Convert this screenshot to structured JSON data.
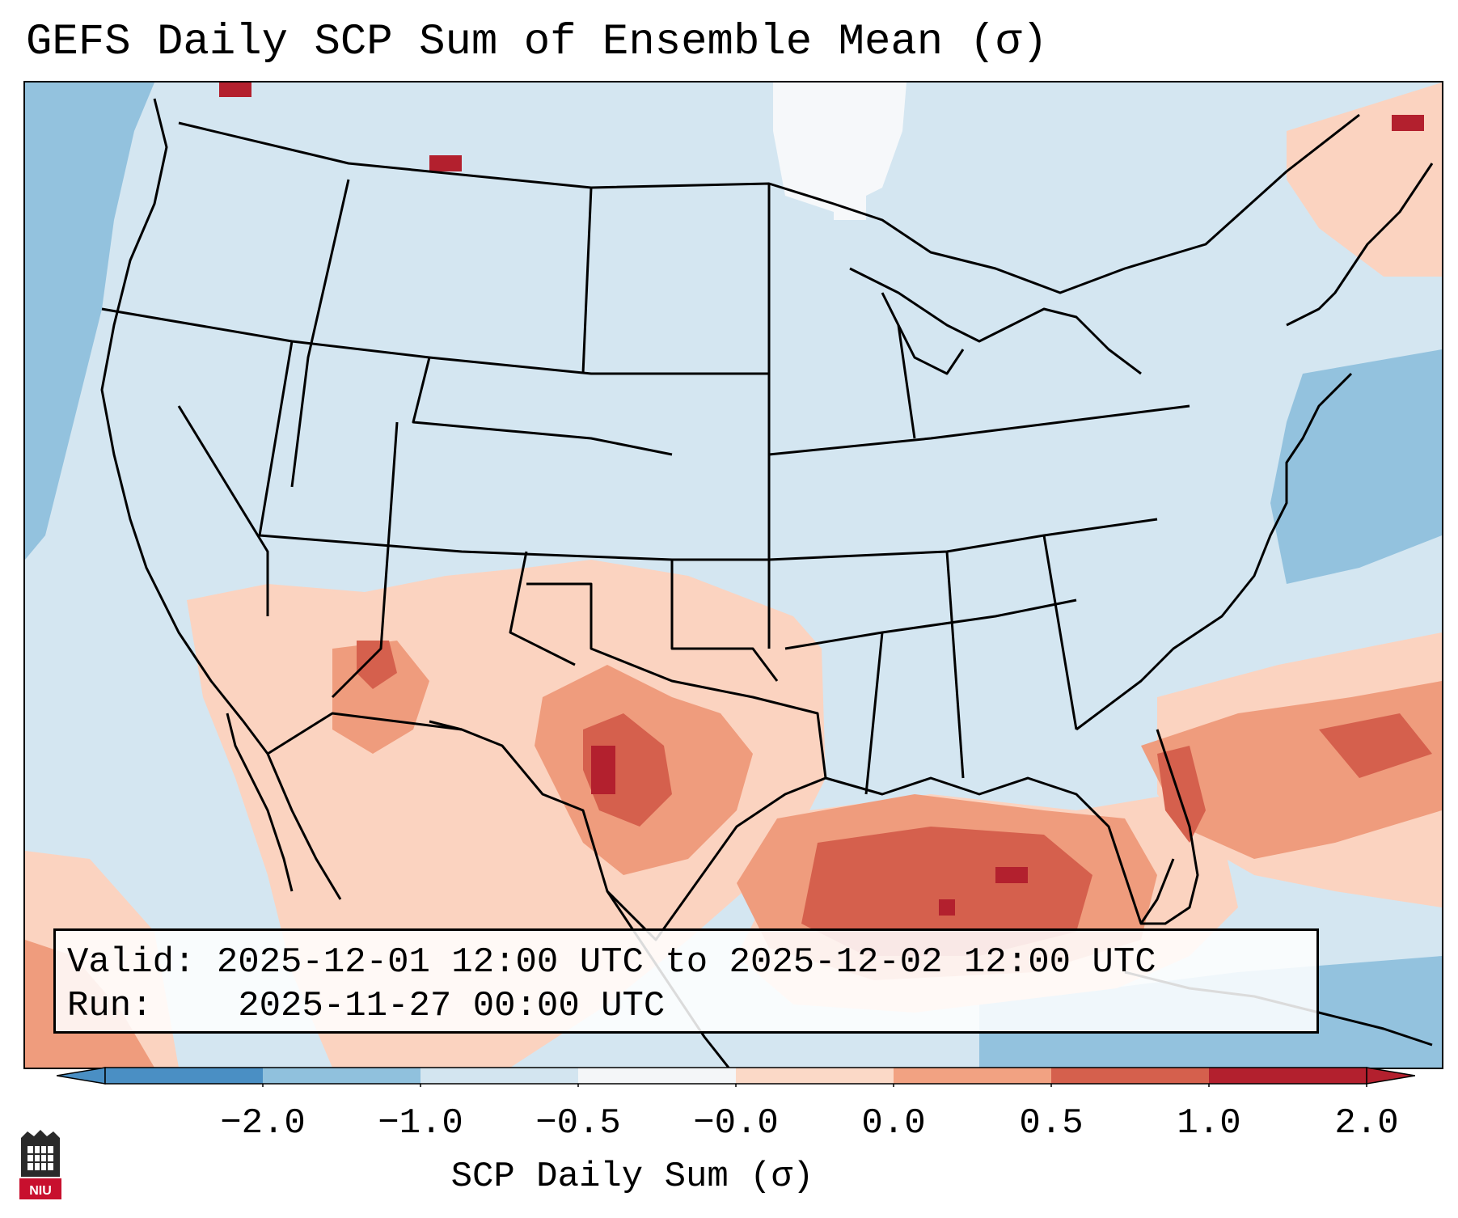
{
  "title": "GEFS Daily SCP Sum of Ensemble Mean (σ)",
  "info": {
    "valid_label": "Valid:",
    "valid_value": "2025-12-01 12:00 UTC to 2025-12-02 12:00 UTC",
    "run_label": "Run:",
    "run_value": "2025-11-27 00:00 UTC"
  },
  "colorbar": {
    "label": "SCP Daily Sum (σ)",
    "ticks": [
      "−2.0",
      "−1.0",
      "−0.5",
      "−0.0",
      "0.0",
      "0.5",
      "1.0",
      "2.0"
    ],
    "colors": [
      "#4a8fc4",
      "#90c1dd",
      "#d3e5f0",
      "#f4f6f8",
      "#fbd9c7",
      "#f2a282",
      "#d5604d",
      "#b3202e"
    ],
    "extend": "both"
  },
  "legend_colors": {
    "strong_negative": "#4a8fc4",
    "negative": "#90c1dd",
    "weak_negative": "#d3e5f0",
    "neutral": "#f4f6f8",
    "weak_positive": "#fbd9c7",
    "positive": "#f2a282",
    "strong_positive": "#d5604d",
    "extreme_positive": "#b3202e"
  },
  "logo": {
    "name": "NIU"
  }
}
